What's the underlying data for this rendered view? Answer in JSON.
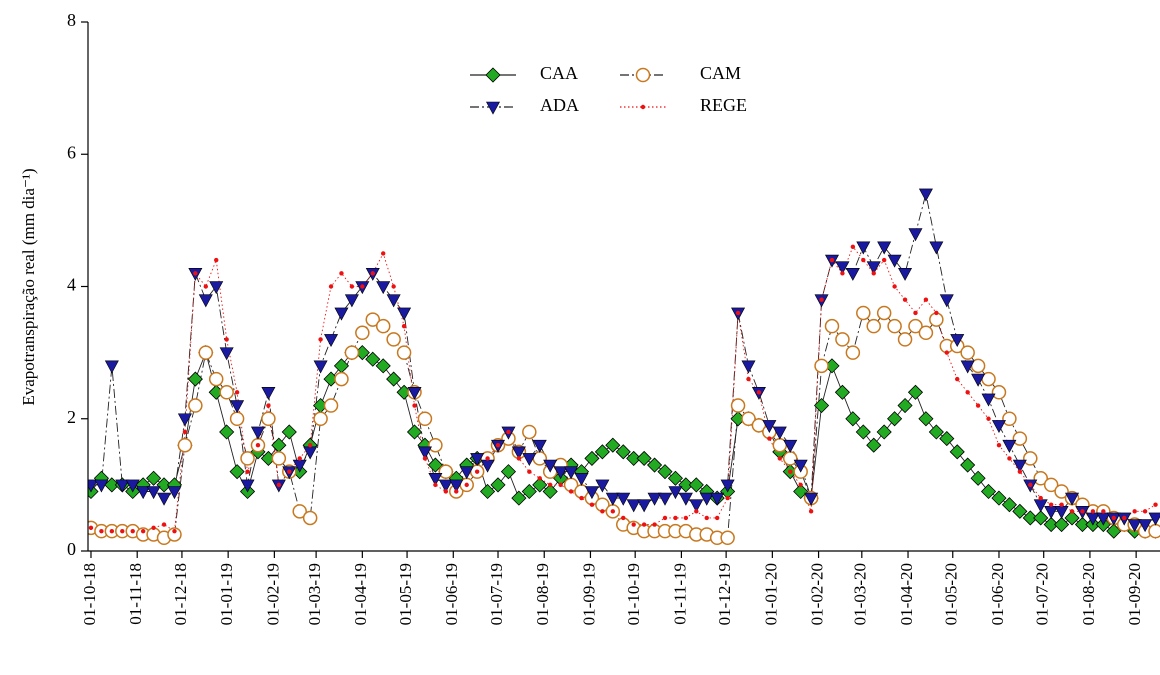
{
  "chart_data": {
    "type": "line",
    "ylabel": "Evapotranspiração real (mm dia⁻¹)",
    "x": [
      "2018-10-01",
      "2018-10-08",
      "2018-10-15",
      "2018-10-22",
      "2018-10-29",
      "2018-11-05",
      "2018-11-12",
      "2018-11-19",
      "2018-11-26",
      "2018-12-03",
      "2018-12-10",
      "2018-12-17",
      "2018-12-24",
      "2018-12-31",
      "2019-01-07",
      "2019-01-14",
      "2019-01-21",
      "2019-01-28",
      "2019-02-04",
      "2019-02-11",
      "2019-02-18",
      "2019-02-25",
      "2019-03-04",
      "2019-03-11",
      "2019-03-18",
      "2019-03-25",
      "2019-04-01",
      "2019-04-08",
      "2019-04-15",
      "2019-04-22",
      "2019-04-29",
      "2019-05-06",
      "2019-05-13",
      "2019-05-20",
      "2019-05-27",
      "2019-06-03",
      "2019-06-10",
      "2019-06-17",
      "2019-06-24",
      "2019-07-01",
      "2019-07-08",
      "2019-07-15",
      "2019-07-22",
      "2019-07-29",
      "2019-08-05",
      "2019-08-12",
      "2019-08-19",
      "2019-08-26",
      "2019-09-02",
      "2019-09-09",
      "2019-09-16",
      "2019-09-23",
      "2019-09-30",
      "2019-10-07",
      "2019-10-14",
      "2019-10-21",
      "2019-10-28",
      "2019-11-04",
      "2019-11-11",
      "2019-11-18",
      "2019-11-25",
      "2019-12-02",
      "2019-12-09",
      "2019-12-16",
      "2019-12-23",
      "2019-12-30",
      "2020-01-06",
      "2020-01-13",
      "2020-01-20",
      "2020-01-27",
      "2020-02-03",
      "2020-02-10",
      "2020-02-17",
      "2020-02-24",
      "2020-03-02",
      "2020-03-09",
      "2020-03-16",
      "2020-03-23",
      "2020-03-30",
      "2020-04-06",
      "2020-04-13",
      "2020-04-20",
      "2020-04-27",
      "2020-05-04",
      "2020-05-11",
      "2020-05-18",
      "2020-05-25",
      "2020-06-01",
      "2020-06-08",
      "2020-06-15",
      "2020-06-22",
      "2020-06-29",
      "2020-07-06",
      "2020-07-13",
      "2020-07-20",
      "2020-07-27",
      "2020-08-03",
      "2020-08-10",
      "2020-08-17",
      "2020-08-24",
      "2020-08-31",
      "2020-09-07",
      "2020-09-14"
    ],
    "series": [
      {
        "name": "CAA",
        "color": "#22aa22",
        "marker": "diamond",
        "line": "solid",
        "values": [
          0.9,
          1.1,
          1.0,
          1.0,
          0.9,
          1.0,
          1.1,
          1.0,
          1.0,
          1.6,
          2.6,
          3.0,
          2.4,
          1.8,
          1.2,
          0.9,
          1.5,
          1.4,
          1.6,
          1.8,
          1.2,
          1.6,
          2.2,
          2.6,
          2.8,
          3.0,
          3.0,
          2.9,
          2.8,
          2.6,
          2.4,
          1.8,
          1.6,
          1.3,
          1.2,
          1.1,
          1.3,
          1.4,
          0.9,
          1.0,
          1.2,
          0.8,
          0.9,
          1.0,
          0.9,
          1.1,
          1.3,
          1.2,
          1.4,
          1.5,
          1.6,
          1.5,
          1.4,
          1.4,
          1.3,
          1.2,
          1.1,
          1.0,
          1.0,
          0.9,
          0.8,
          0.9,
          2.0,
          2.0,
          1.9,
          1.8,
          1.5,
          1.2,
          0.9,
          0.8,
          2.2,
          2.8,
          2.4,
          2.0,
          1.8,
          1.6,
          1.8,
          2.0,
          2.2,
          2.4,
          2.0,
          1.8,
          1.7,
          1.5,
          1.3,
          1.1,
          0.9,
          0.8,
          0.7,
          0.6,
          0.5,
          0.5,
          0.4,
          0.4,
          0.5,
          0.4,
          0.4,
          0.4,
          0.3,
          0.4,
          0.3,
          0.3,
          0.3
        ]
      },
      {
        "name": "CAM",
        "color": "#c8781e",
        "marker": "circle-open",
        "line": "dashdot",
        "values": [
          0.35,
          0.3,
          0.3,
          0.3,
          0.3,
          0.25,
          0.25,
          0.2,
          0.25,
          1.6,
          2.2,
          3.0,
          2.6,
          2.4,
          2.0,
          1.4,
          1.6,
          2.0,
          1.4,
          1.2,
          0.6,
          0.5,
          2.0,
          2.2,
          2.6,
          3.0,
          3.3,
          3.5,
          3.4,
          3.2,
          3.0,
          2.4,
          2.0,
          1.6,
          1.2,
          0.9,
          1.0,
          1.2,
          1.4,
          1.6,
          1.7,
          1.5,
          1.8,
          1.4,
          1.2,
          1.3,
          1.0,
          0.9,
          0.8,
          0.7,
          0.6,
          0.4,
          0.35,
          0.3,
          0.3,
          0.3,
          0.3,
          0.3,
          0.25,
          0.25,
          0.2,
          0.2,
          2.2,
          2.0,
          1.9,
          1.8,
          1.6,
          1.4,
          1.2,
          0.8,
          2.8,
          3.4,
          3.2,
          3.0,
          3.6,
          3.4,
          3.6,
          3.4,
          3.2,
          3.4,
          3.3,
          3.5,
          3.1,
          3.1,
          3.0,
          2.8,
          2.6,
          2.4,
          2.0,
          1.7,
          1.4,
          1.1,
          1.0,
          0.9,
          0.8,
          0.7,
          0.6,
          0.6,
          0.5,
          0.4,
          0.4,
          0.3,
          0.3
        ]
      },
      {
        "name": "ADA",
        "color": "#1a1aa0",
        "marker": "triangle-down",
        "line": "dashdot",
        "values": [
          1.0,
          1.0,
          2.8,
          1.0,
          1.0,
          0.9,
          0.9,
          0.8,
          0.9,
          2.0,
          4.2,
          3.8,
          4.0,
          3.0,
          2.2,
          1.0,
          1.8,
          2.4,
          1.0,
          1.2,
          1.3,
          1.5,
          2.8,
          3.2,
          3.6,
          3.8,
          4.0,
          4.2,
          4.0,
          3.8,
          3.6,
          2.4,
          1.5,
          1.1,
          1.0,
          1.0,
          1.2,
          1.4,
          1.3,
          1.6,
          1.8,
          1.5,
          1.4,
          1.6,
          1.3,
          1.2,
          1.2,
          1.1,
          0.9,
          1.0,
          0.8,
          0.8,
          0.7,
          0.7,
          0.8,
          0.8,
          0.9,
          0.8,
          0.7,
          0.8,
          0.8,
          1.0,
          3.6,
          2.8,
          2.4,
          1.9,
          1.8,
          1.6,
          1.3,
          0.8,
          3.8,
          4.4,
          4.3,
          4.2,
          4.6,
          4.3,
          4.6,
          4.4,
          4.2,
          4.8,
          5.4,
          4.6,
          3.8,
          3.2,
          2.8,
          2.6,
          2.3,
          1.9,
          1.6,
          1.3,
          1.0,
          0.7,
          0.6,
          0.6,
          0.8,
          0.6,
          0.5,
          0.5,
          0.5,
          0.5,
          0.4,
          0.4,
          0.5
        ]
      },
      {
        "name": "REGE",
        "color": "#ee1111",
        "marker": "dot",
        "line": "dotted",
        "values": [
          0.35,
          0.3,
          0.3,
          0.3,
          0.3,
          0.3,
          0.35,
          0.4,
          0.3,
          1.8,
          4.2,
          4.0,
          4.4,
          3.2,
          2.4,
          1.2,
          1.6,
          2.2,
          1.0,
          1.2,
          1.4,
          1.6,
          3.2,
          4.0,
          4.2,
          4.0,
          4.0,
          4.2,
          4.5,
          4.0,
          3.4,
          2.2,
          1.4,
          1.0,
          0.9,
          0.9,
          1.0,
          1.2,
          1.4,
          1.6,
          1.8,
          1.4,
          1.2,
          1.1,
          1.0,
          1.0,
          0.9,
          0.8,
          0.7,
          0.6,
          0.6,
          0.5,
          0.4,
          0.4,
          0.4,
          0.5,
          0.5,
          0.5,
          0.6,
          0.5,
          0.5,
          0.8,
          3.6,
          2.6,
          2.4,
          1.7,
          1.4,
          1.2,
          1.0,
          0.6,
          3.8,
          4.4,
          4.2,
          4.6,
          4.4,
          4.2,
          4.4,
          4.0,
          3.8,
          3.6,
          3.8,
          3.6,
          3.0,
          2.6,
          2.4,
          2.2,
          2.0,
          1.6,
          1.4,
          1.2,
          1.0,
          0.8,
          0.7,
          0.7,
          0.6,
          0.6,
          0.6,
          0.6,
          0.5,
          0.5,
          0.6,
          0.6,
          0.7
        ]
      }
    ],
    "xlim": [
      "2018-09-29",
      "2020-09-17"
    ],
    "xticks": [
      {
        "value": "2018-10-01",
        "label": "01-10-18"
      },
      {
        "value": "2018-11-01",
        "label": "01-11-18"
      },
      {
        "value": "2018-12-01",
        "label": "01-12-18"
      },
      {
        "value": "2019-01-01",
        "label": "01-01-19"
      },
      {
        "value": "2019-02-01",
        "label": "01-02-19"
      },
      {
        "value": "2019-03-01",
        "label": "01-03-19"
      },
      {
        "value": "2019-04-01",
        "label": "01-04-19"
      },
      {
        "value": "2019-05-01",
        "label": "01-05-19"
      },
      {
        "value": "2019-06-01",
        "label": "01-06-19"
      },
      {
        "value": "2019-07-01",
        "label": "01-07-19"
      },
      {
        "value": "2019-08-01",
        "label": "01-08-19"
      },
      {
        "value": "2019-09-01",
        "label": "01-09-19"
      },
      {
        "value": "2019-10-01",
        "label": "01-10-19"
      },
      {
        "value": "2019-11-01",
        "label": "01-11-19"
      },
      {
        "value": "2019-12-01",
        "label": "01-12-19"
      },
      {
        "value": "2020-01-01",
        "label": "01-01-20"
      },
      {
        "value": "2020-02-01",
        "label": "01-02-20"
      },
      {
        "value": "2020-03-01",
        "label": "01-03-20"
      },
      {
        "value": "2020-04-01",
        "label": "01-04-20"
      },
      {
        "value": "2020-05-01",
        "label": "01-05-20"
      },
      {
        "value": "2020-06-01",
        "label": "01-06-20"
      },
      {
        "value": "2020-07-01",
        "label": "01-07-20"
      },
      {
        "value": "2020-08-01",
        "label": "01-08-20"
      },
      {
        "value": "2020-09-01",
        "label": "01-09-20"
      }
    ],
    "ylim": [
      0,
      8
    ],
    "yticks": [
      0,
      2,
      4,
      6,
      8
    ],
    "legend": "top-center",
    "grid": false
  }
}
